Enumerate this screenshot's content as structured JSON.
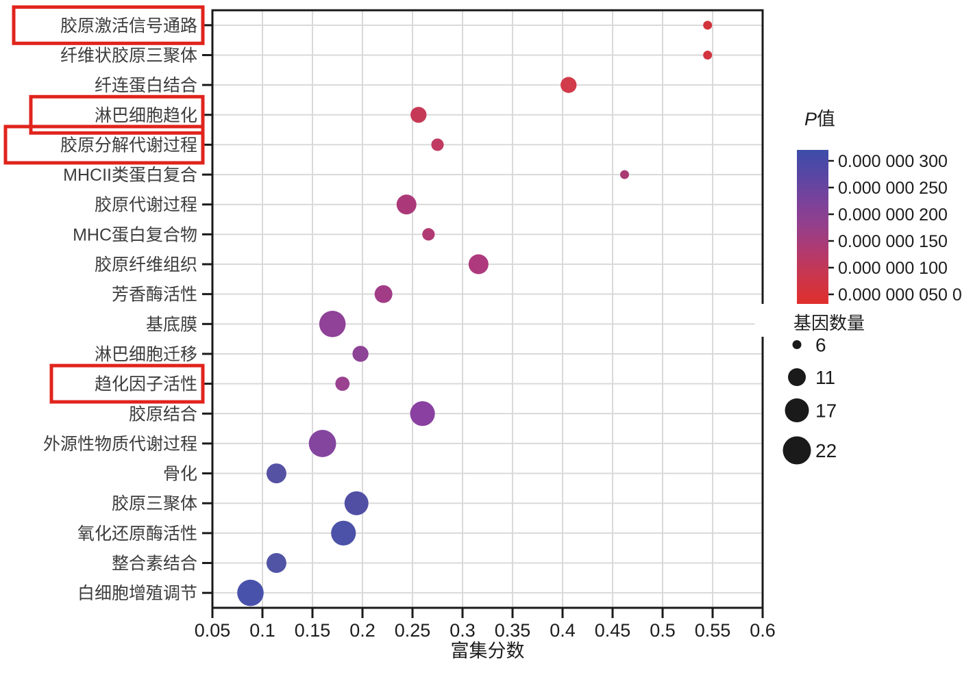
{
  "chart_data": {
    "type": "scatter",
    "title": "",
    "xlabel": "富集分数",
    "xlim": [
      0.05,
      0.6
    ],
    "x_ticks": [
      "0.05",
      "0.1",
      "0.15",
      "0.2",
      "0.25",
      "0.3",
      "0.35",
      "0.4",
      "0.45",
      "0.5",
      "0.55",
      "0.6"
    ],
    "grid": true,
    "highlight_color": "#e0241d",
    "points": [
      {
        "label": "胶原激活信号通路",
        "x": 0.545,
        "genes": 6,
        "color": "#d1343b",
        "highlighted": true
      },
      {
        "label": "纤维状胶原三聚体",
        "x": 0.545,
        "genes": 6,
        "color": "#d1343e",
        "highlighted": false
      },
      {
        "label": "纤连蛋白结合",
        "x": 0.406,
        "genes": 10,
        "color": "#d23b49",
        "highlighted": false
      },
      {
        "label": "淋巴细胞趋化",
        "x": 0.256,
        "genes": 10,
        "color": "#c63956",
        "highlighted": true
      },
      {
        "label": "胶原分解代谢过程",
        "x": 0.275,
        "genes": 8,
        "color": "#c03a62",
        "highlighted": true
      },
      {
        "label": "MHCII类蛋白复合",
        "x": 0.462,
        "genes": 6,
        "color": "#a93a72",
        "highlighted": false
      },
      {
        "label": "胶原代谢过程",
        "x": 0.244,
        "genes": 13,
        "color": "#ab3979",
        "highlighted": false
      },
      {
        "label": "MHC蛋白复合物",
        "x": 0.266,
        "genes": 8,
        "color": "#b03a74",
        "highlighted": false
      },
      {
        "label": "胶原纤维组织",
        "x": 0.316,
        "genes": 13,
        "color": "#ae397d",
        "highlighted": false
      },
      {
        "label": "芳香酶活性",
        "x": 0.221,
        "genes": 11,
        "color": "#a23c87",
        "highlighted": false
      },
      {
        "label": "基底膜",
        "x": 0.17,
        "genes": 20,
        "color": "#8f4298",
        "highlighted": false
      },
      {
        "label": "淋巴细胞迁移",
        "x": 0.198,
        "genes": 10,
        "color": "#8d4396",
        "highlighted": false
      },
      {
        "label": "趋化因子活性",
        "x": 0.18,
        "genes": 9,
        "color": "#9a4190",
        "highlighted": true
      },
      {
        "label": "胶原结合",
        "x": 0.26,
        "genes": 18,
        "color": "#8940a0",
        "highlighted": false
      },
      {
        "label": "外源性物质代谢过程",
        "x": 0.16,
        "genes": 21,
        "color": "#84459f",
        "highlighted": false
      },
      {
        "label": "骨化",
        "x": 0.114,
        "genes": 13,
        "color": "#5652a3",
        "highlighted": false
      },
      {
        "label": "胶原三聚体",
        "x": 0.194,
        "genes": 17,
        "color": "#504fa4",
        "highlighted": false
      },
      {
        "label": "氧化还原酶活性",
        "x": 0.181,
        "genes": 18,
        "color": "#4b52a7",
        "highlighted": false
      },
      {
        "label": "整合素结合",
        "x": 0.114,
        "genes": 13,
        "color": "#5154a5",
        "highlighted": false
      },
      {
        "label": "白细胞增殖调节",
        "x": 0.088,
        "genes": 20,
        "color": "#4952ab",
        "highlighted": false
      }
    ],
    "pvalue_legend": {
      "title_italic": "P",
      "title_rest": "值",
      "tick_labels": [
        "0.000 000 300",
        "0.000 000 250",
        "0.000 000 200",
        "0.000 000 150",
        "0.000 000 100",
        "0.000 000 050 0"
      ],
      "gradient_stops": [
        {
          "offset": 0,
          "color": "#3d4ca9"
        },
        {
          "offset": 0.18,
          "color": "#5b46a3"
        },
        {
          "offset": 0.36,
          "color": "#7f4199"
        },
        {
          "offset": 0.5,
          "color": "#963f8a"
        },
        {
          "offset": 0.64,
          "color": "#ae3a72"
        },
        {
          "offset": 0.8,
          "color": "#c73750"
        },
        {
          "offset": 1,
          "color": "#e02e2c"
        }
      ]
    },
    "size_legend": {
      "title": "基因数量",
      "entries": [
        {
          "genes": "6"
        },
        {
          "genes": "11"
        },
        {
          "genes": "17"
        },
        {
          "genes": "22"
        }
      ],
      "circle_color": "#1a1a1a"
    }
  }
}
